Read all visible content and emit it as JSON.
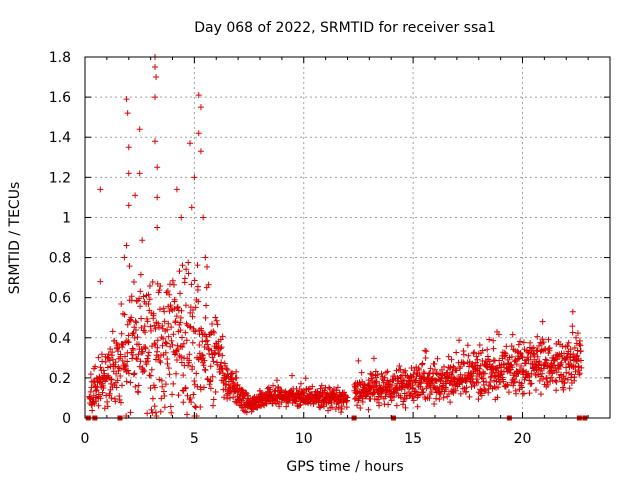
{
  "chart_data": {
    "type": "scatter",
    "title": "Day 068 of 2022, SRMTID for receiver ssa1",
    "xlabel": "GPS time / hours",
    "ylabel": "SRMTID / TECUs",
    "xlim": [
      0,
      24
    ],
    "ylim": [
      0,
      1.8
    ],
    "xticks": [
      "0",
      "5",
      "10",
      "15",
      "20"
    ],
    "xtick_values": [
      0,
      5,
      10,
      15,
      20
    ],
    "yticks": [
      "0",
      "0.2",
      "0.4",
      "0.6",
      "0.8",
      "1",
      "1.2",
      "1.4",
      "1.6",
      "1.8"
    ],
    "ytick_values": [
      0,
      0.2,
      0.4,
      0.6,
      0.8,
      1.0,
      1.2,
      1.4,
      1.6,
      1.8
    ],
    "grid": true,
    "marker": "+",
    "series": [
      {
        "name": "SRMTID",
        "color": "#dd0000",
        "profile": [
          {
            "x": 0.2,
            "median": 0.12,
            "spread": 0.06
          },
          {
            "x": 1.0,
            "median": 0.2,
            "spread": 0.12
          },
          {
            "x": 2.0,
            "median": 0.35,
            "spread": 0.25
          },
          {
            "x": 3.0,
            "median": 0.38,
            "spread": 0.28
          },
          {
            "x": 4.0,
            "median": 0.35,
            "spread": 0.25
          },
          {
            "x": 5.0,
            "median": 0.42,
            "spread": 0.3
          },
          {
            "x": 6.0,
            "median": 0.3,
            "spread": 0.18
          },
          {
            "x": 6.6,
            "median": 0.17,
            "spread": 0.08
          },
          {
            "x": 7.5,
            "median": 0.07,
            "spread": 0.03
          },
          {
            "x": 8.5,
            "median": 0.11,
            "spread": 0.03
          },
          {
            "x": 10.0,
            "median": 0.1,
            "spread": 0.04
          },
          {
            "x": 11.9,
            "median": 0.1,
            "spread": 0.04
          },
          {
            "x": 12.4,
            "median": 0.12,
            "spread": 0.06
          },
          {
            "x": 14.0,
            "median": 0.15,
            "spread": 0.07
          },
          {
            "x": 16.0,
            "median": 0.18,
            "spread": 0.08
          },
          {
            "x": 18.0,
            "median": 0.22,
            "spread": 0.09
          },
          {
            "x": 20.0,
            "median": 0.26,
            "spread": 0.1
          },
          {
            "x": 22.0,
            "median": 0.27,
            "spread": 0.1
          },
          {
            "x": 22.7,
            "median": 0.32,
            "spread": 0.08
          }
        ],
        "highlights": [
          {
            "x": 0.7,
            "y": 1.14
          },
          {
            "x": 0.7,
            "y": 0.68
          },
          {
            "x": 1.8,
            "y": 0.8
          },
          {
            "x": 1.9,
            "y": 0.86
          },
          {
            "x": 1.9,
            "y": 1.59
          },
          {
            "x": 1.95,
            "y": 1.52
          },
          {
            "x": 2.0,
            "y": 1.35
          },
          {
            "x": 2.0,
            "y": 1.22
          },
          {
            "x": 2.0,
            "y": 1.06
          },
          {
            "x": 2.5,
            "y": 1.44
          },
          {
            "x": 2.5,
            "y": 1.22
          },
          {
            "x": 3.2,
            "y": 1.8
          },
          {
            "x": 3.2,
            "y": 1.75
          },
          {
            "x": 3.25,
            "y": 1.7
          },
          {
            "x": 3.2,
            "y": 1.6
          },
          {
            "x": 3.2,
            "y": 1.38
          },
          {
            "x": 3.3,
            "y": 1.25
          },
          {
            "x": 3.3,
            "y": 1.1
          },
          {
            "x": 3.3,
            "y": 0.95
          },
          {
            "x": 4.2,
            "y": 1.14
          },
          {
            "x": 4.4,
            "y": 1.0
          },
          {
            "x": 4.8,
            "y": 1.37
          },
          {
            "x": 5.0,
            "y": 1.2
          },
          {
            "x": 5.2,
            "y": 1.61
          },
          {
            "x": 5.3,
            "y": 1.55
          },
          {
            "x": 5.2,
            "y": 1.42
          },
          {
            "x": 5.3,
            "y": 1.33
          },
          {
            "x": 5.4,
            "y": 1.0
          },
          {
            "x": 5.5,
            "y": 0.8
          },
          {
            "x": 22.3,
            "y": 0.53
          }
        ],
        "zero_markers": [
          0.15,
          0.45,
          1.6,
          12.3,
          14.1,
          19.4,
          22.6,
          22.85
        ]
      }
    ]
  }
}
